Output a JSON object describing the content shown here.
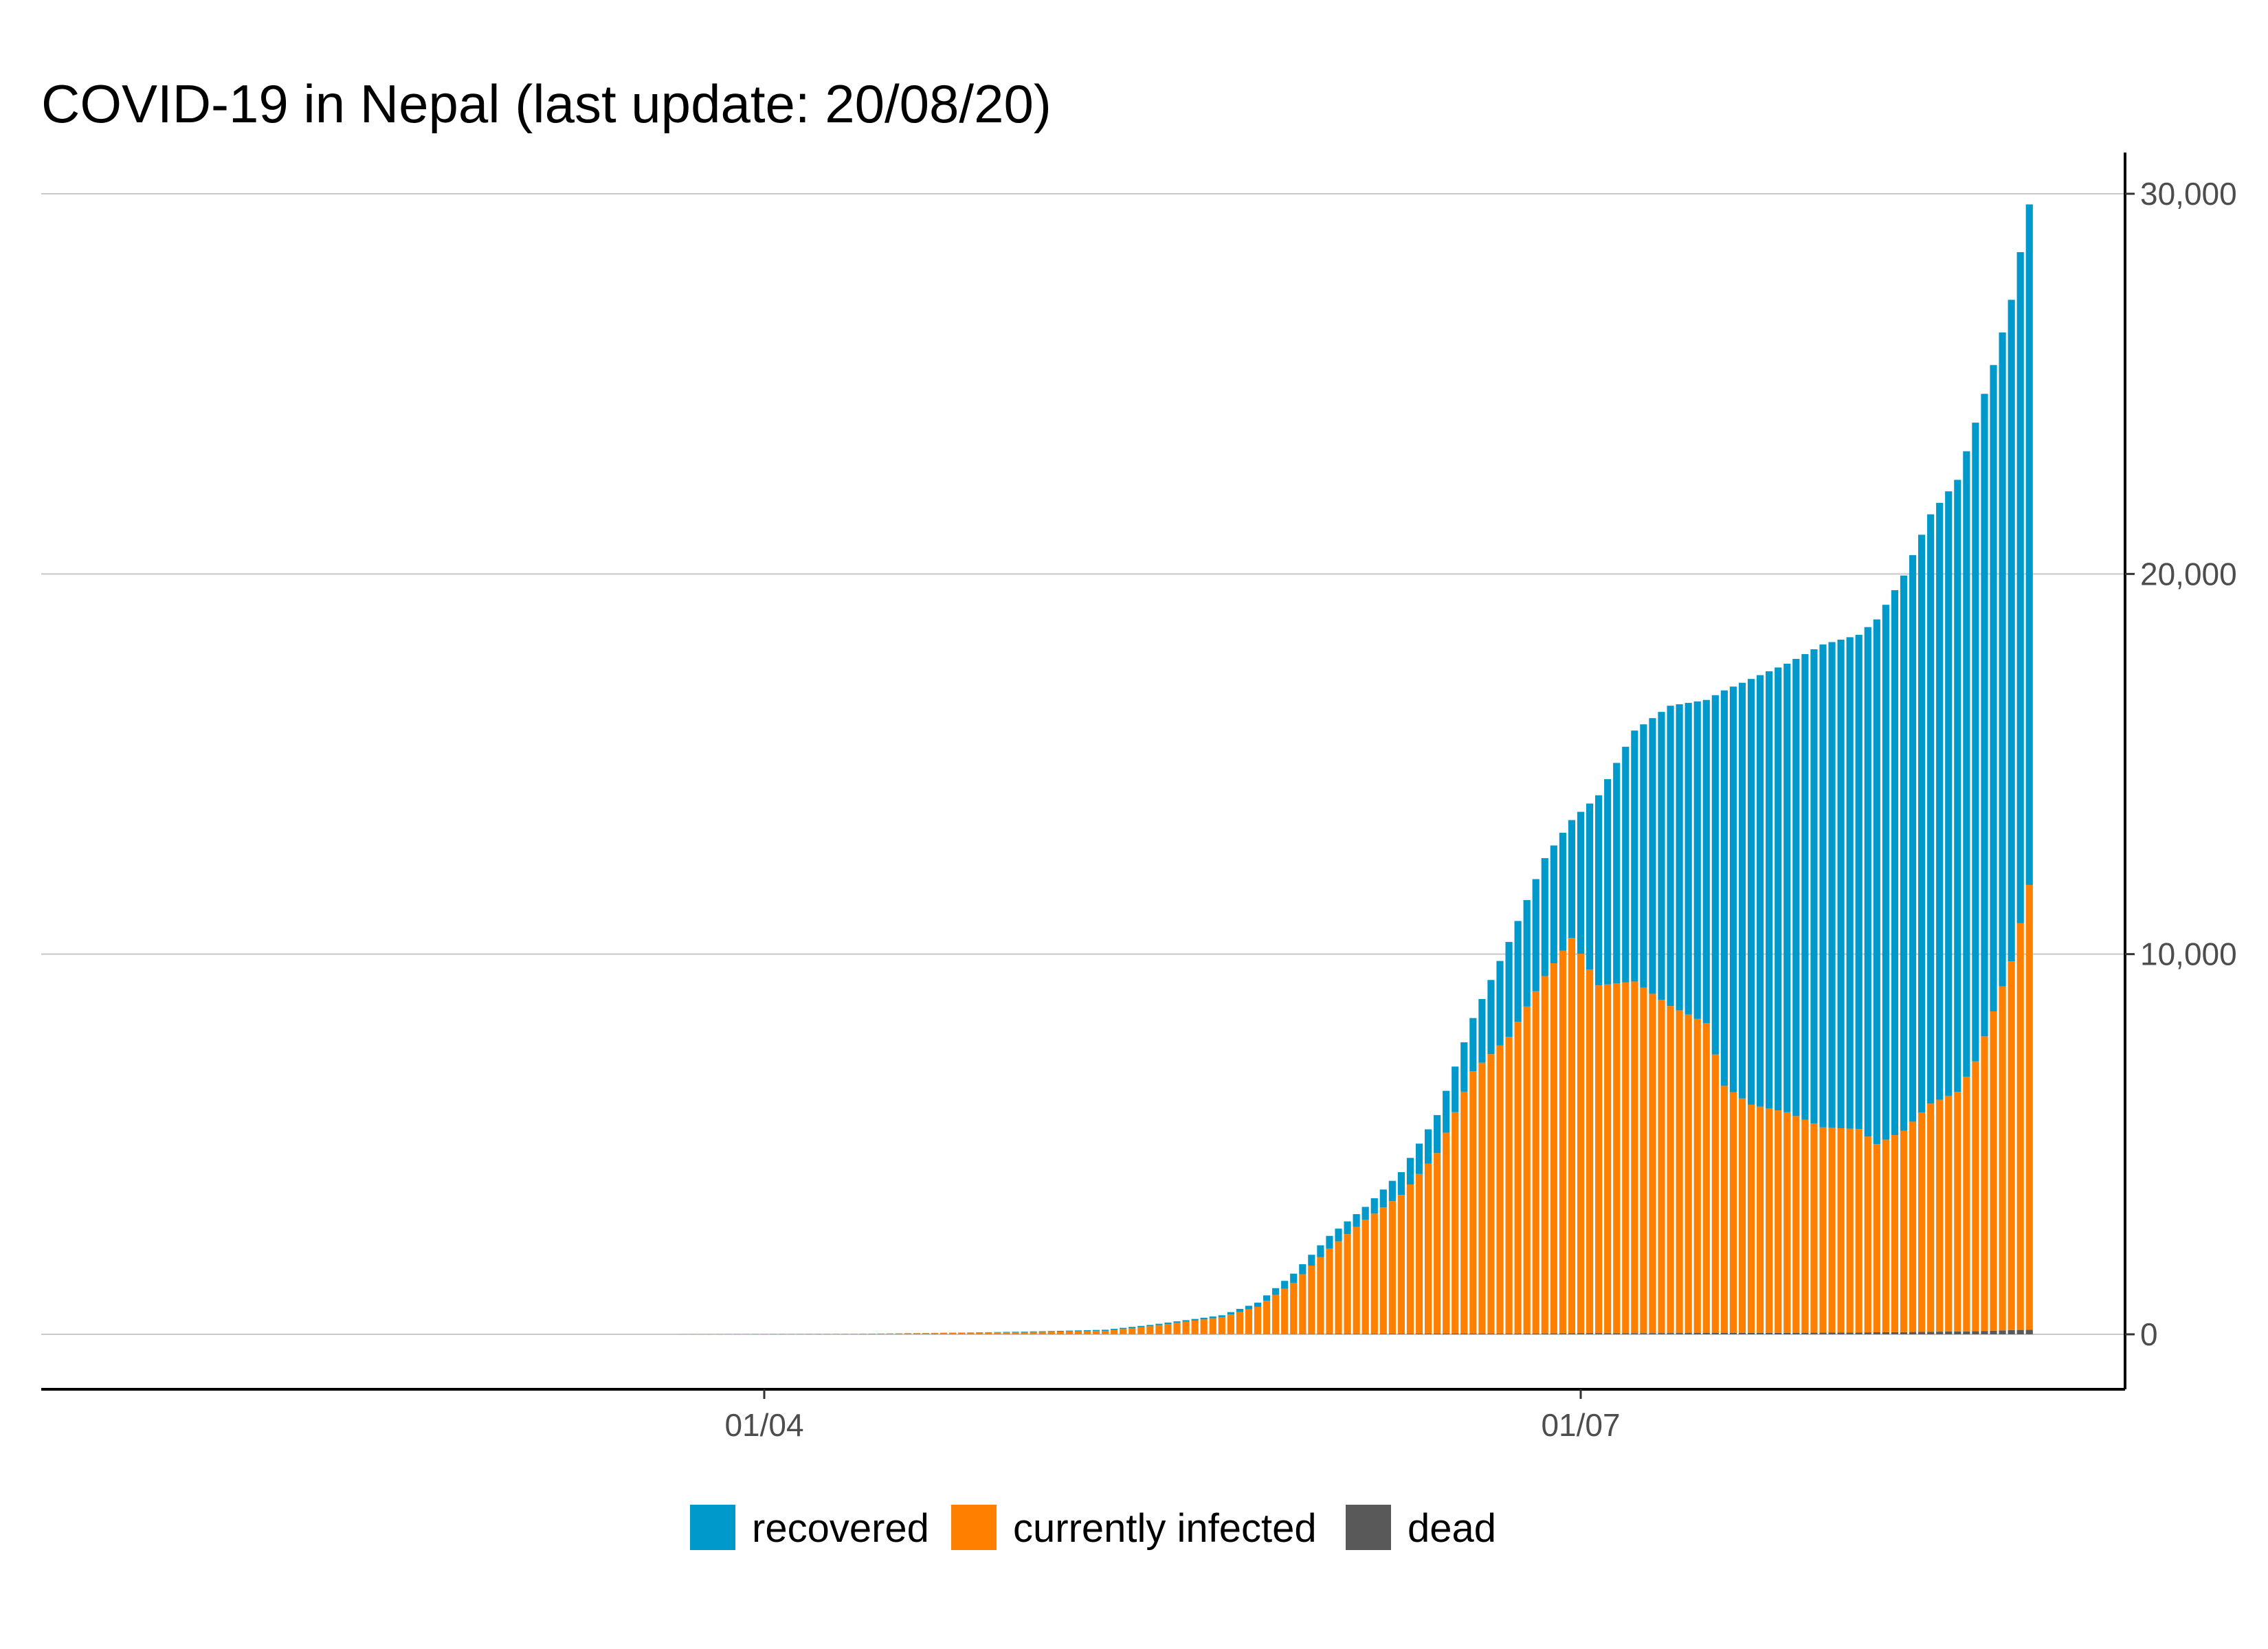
{
  "chart_data": {
    "type": "bar",
    "stacked": true,
    "title": "COVID-19 in Nepal (last update: 20/08/20)",
    "xlabel": "",
    "ylabel": "",
    "x_start": "2020-03-23",
    "x_end": "2020-08-20",
    "x_ticks": [
      {
        "label": "01/04",
        "date": "2020-04-01"
      },
      {
        "label": "01/07",
        "date": "2020-07-01"
      }
    ],
    "y_ticks": [
      {
        "label": "0",
        "value": 0
      },
      {
        "label": "10,000",
        "value": 10000
      },
      {
        "label": "20,000",
        "value": 20000
      },
      {
        "label": "30,000",
        "value": 30000
      }
    ],
    "ylim": [
      -1400,
      31100
    ],
    "grid": true,
    "y_axis_position": "right",
    "legend_position": "bottom",
    "series": [
      {
        "name": "dead",
        "color": "#595959",
        "key": "dead"
      },
      {
        "name": "currently infected",
        "color": "#ff8000",
        "key": "infected"
      },
      {
        "name": "recovered",
        "color": "#0099cc",
        "key": "recovered"
      }
    ],
    "legend": [
      {
        "name": "recovered",
        "color": "#0099cc"
      },
      {
        "name": "currently infected",
        "color": "#ff8000"
      },
      {
        "name": "dead",
        "color": "#595959"
      }
    ],
    "daily_values": [
      {
        "date": "2020-03-23",
        "dead": 0,
        "infected": 2,
        "recovered": 1
      },
      {
        "date": "2020-03-28",
        "dead": 0,
        "infected": 5,
        "recovered": 1
      },
      {
        "date": "2020-04-04",
        "dead": 0,
        "infected": 8,
        "recovered": 1
      },
      {
        "date": "2020-04-11",
        "dead": 0,
        "infected": 12,
        "recovered": 1
      },
      {
        "date": "2020-04-18",
        "dead": 0,
        "infected": 30,
        "recovered": 3
      },
      {
        "date": "2020-04-25",
        "dead": 0,
        "infected": 45,
        "recovered": 7
      },
      {
        "date": "2020-05-02",
        "dead": 0,
        "infected": 65,
        "recovered": 16
      },
      {
        "date": "2020-05-09",
        "dead": 0,
        "infected": 90,
        "recovered": 30
      },
      {
        "date": "2020-05-14",
        "dead": 1,
        "infected": 210,
        "recovered": 35
      },
      {
        "date": "2020-05-18",
        "dead": 2,
        "infected": 330,
        "recovered": 40
      },
      {
        "date": "2020-05-22",
        "dead": 3,
        "infected": 450,
        "recovered": 48
      },
      {
        "date": "2020-05-26",
        "dead": 4,
        "infected": 720,
        "recovered": 110
      },
      {
        "date": "2020-05-30",
        "dead": 6,
        "infected": 1350,
        "recovered": 240
      },
      {
        "date": "2020-06-03",
        "dead": 9,
        "infected": 2250,
        "recovered": 330
      },
      {
        "date": "2020-06-07",
        "dead": 12,
        "infected": 3000,
        "recovered": 340
      },
      {
        "date": "2020-06-11",
        "dead": 15,
        "infected": 3650,
        "recovered": 600
      },
      {
        "date": "2020-06-15",
        "dead": 17,
        "infected": 4750,
        "recovered": 1000
      },
      {
        "date": "2020-06-19",
        "dead": 19,
        "infected": 6900,
        "recovered": 1400
      },
      {
        "date": "2020-06-23",
        "dead": 21,
        "infected": 7800,
        "recovered": 2500
      },
      {
        "date": "2020-06-27",
        "dead": 24,
        "infected": 9400,
        "recovered": 3100
      },
      {
        "date": "2020-06-30",
        "dead": 26,
        "infected": 10400,
        "recovered": 3100
      },
      {
        "date": "2020-07-03",
        "dead": 28,
        "infected": 9150,
        "recovered": 5000
      },
      {
        "date": "2020-07-07",
        "dead": 31,
        "infected": 9250,
        "recovered": 6600
      },
      {
        "date": "2020-07-11",
        "dead": 34,
        "infected": 8600,
        "recovered": 7900
      },
      {
        "date": "2020-07-15",
        "dead": 36,
        "infected": 8150,
        "recovered": 8500
      },
      {
        "date": "2020-07-17",
        "dead": 37,
        "infected": 6500,
        "recovered": 10400
      },
      {
        "date": "2020-07-20",
        "dead": 38,
        "infected": 6000,
        "recovered": 11200
      },
      {
        "date": "2020-07-24",
        "dead": 40,
        "infected": 5800,
        "recovered": 11800
      },
      {
        "date": "2020-07-28",
        "dead": 44,
        "infected": 5400,
        "recovered": 12700
      },
      {
        "date": "2020-08-01",
        "dead": 50,
        "infected": 5350,
        "recovered": 13000
      },
      {
        "date": "2020-08-03",
        "dead": 54,
        "infected": 4950,
        "recovered": 13800
      },
      {
        "date": "2020-08-06",
        "dead": 58,
        "infected": 5300,
        "recovered": 14600
      },
      {
        "date": "2020-08-09",
        "dead": 68,
        "infected": 6000,
        "recovered": 15500
      },
      {
        "date": "2020-08-12",
        "dead": 75,
        "infected": 6300,
        "recovered": 16100
      },
      {
        "date": "2020-08-14",
        "dead": 80,
        "infected": 7100,
        "recovered": 16800
      },
      {
        "date": "2020-08-16",
        "dead": 95,
        "infected": 8400,
        "recovered": 17000
      },
      {
        "date": "2020-08-18",
        "dead": 110,
        "infected": 9700,
        "recovered": 17400
      },
      {
        "date": "2020-08-20",
        "dead": 120,
        "infected": 11700,
        "recovered": 17900
      }
    ]
  }
}
